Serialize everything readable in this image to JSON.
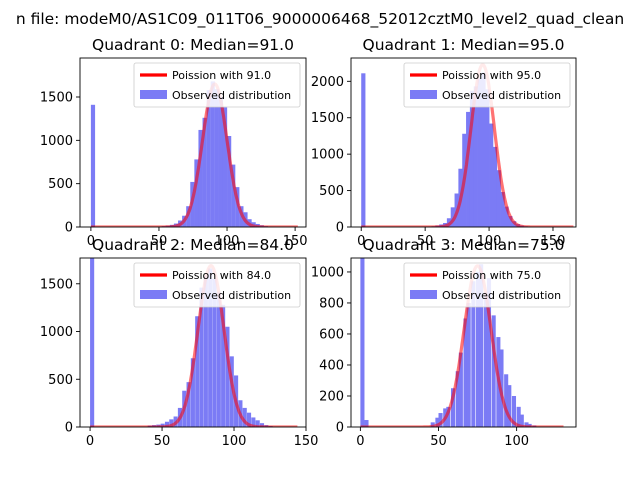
{
  "figure": {
    "suptitle": "n file: modeM0/AS1C09_011T06_9000006468_52012cztM0_level2_quad_clean"
  },
  "colors": {
    "hist": "#7b7bf5",
    "curve": "#ff0000",
    "curve_alpha": 0.55
  },
  "chart_data": [
    {
      "type": "bar",
      "title": "Quadrant 0: Median=91.0",
      "xlim": [
        -8,
        158
      ],
      "ylim": [
        0,
        1950
      ],
      "xticks": [
        0,
        50,
        100,
        150
      ],
      "yticks": [
        0,
        500,
        1000,
        1500
      ],
      "legend": {
        "position": "top-right",
        "entries": [
          "Poission with 91.0",
          "Observed distribution"
        ]
      },
      "hist": {
        "bin_width": 3.08,
        "x": [
          0,
          52,
          55,
          58,
          61,
          64,
          67,
          70,
          73,
          76,
          79,
          82,
          85,
          88,
          91,
          94,
          97,
          100,
          103,
          106,
          109,
          112,
          115,
          118,
          121,
          124,
          127,
          130,
          133
        ],
        "values": [
          1410,
          10,
          15,
          25,
          40,
          75,
          130,
          240,
          520,
          780,
          1120,
          1260,
          1580,
          1680,
          1590,
          1500,
          1380,
          1050,
          720,
          460,
          240,
          170,
          90,
          55,
          35,
          20,
          10,
          5,
          3
        ]
      },
      "curve": {
        "label": "Poission with 91.0",
        "mean": 91.0,
        "sigma": 9.0,
        "peak": 1650,
        "x_range": [
          0,
          152
        ]
      }
    },
    {
      "type": "bar",
      "title": "Quadrant 1: Median=95.0",
      "xlim": [
        -8,
        168
      ],
      "ylim": [
        0,
        2320
      ],
      "xticks": [
        0,
        50,
        100,
        150
      ],
      "yticks": [
        0,
        500,
        1000,
        1500,
        2000
      ],
      "legend": {
        "position": "top-right",
        "entries": [
          "Poission with 95.0",
          "Observed distribution"
        ]
      },
      "hist": {
        "bin_width": 3.29,
        "x": [
          0,
          55,
          58,
          61,
          64,
          67,
          70,
          73,
          76,
          79,
          82,
          85,
          88,
          91,
          94,
          97,
          100,
          103,
          106,
          109,
          112,
          115,
          118,
          121,
          124,
          127,
          130
        ],
        "values": [
          2110,
          10,
          20,
          35,
          55,
          120,
          270,
          460,
          800,
          1280,
          1580,
          1870,
          1930,
          2040,
          2120,
          1890,
          1420,
          1100,
          780,
          480,
          280,
          150,
          80,
          40,
          20,
          10,
          5
        ]
      },
      "curve": {
        "label": "Poission with 95.0",
        "mean": 95.0,
        "sigma": 9.2,
        "peak": 2230,
        "x_range": [
          0,
          166
        ]
      }
    },
    {
      "type": "bar",
      "title": "Quadrant 2: Median=84.0",
      "xlim": [
        -7,
        150
      ],
      "ylim": [
        0,
        1770
      ],
      "xticks": [
        0,
        50,
        100,
        150
      ],
      "yticks": [
        0,
        500,
        1000,
        1500
      ],
      "legend": {
        "position": "top-right",
        "entries": [
          "Poission with 84.0",
          "Observed distribution"
        ]
      },
      "hist": {
        "bin_width": 2.86,
        "x": [
          0,
          40,
          43,
          46,
          49,
          52,
          55,
          58,
          61,
          64,
          67,
          70,
          73,
          76,
          79,
          82,
          85,
          88,
          91,
          94,
          97,
          100,
          103,
          106,
          109,
          112,
          115,
          118,
          121,
          124
        ],
        "values": [
          1770,
          15,
          20,
          25,
          35,
          55,
          80,
          110,
          200,
          380,
          470,
          720,
          1160,
          1460,
          1580,
          1660,
          1550,
          1410,
          1280,
          1050,
          740,
          540,
          280,
          200,
          150,
          100,
          70,
          40,
          20,
          10
        ]
      },
      "curve": {
        "label": "Poission with 84.0",
        "mean": 84.0,
        "sigma": 9.0,
        "peak": 1690,
        "x_range": [
          0,
          144
        ]
      }
    },
    {
      "type": "bar",
      "title": "Quadrant 3: Median=75.0",
      "xlim": [
        -6,
        138
      ],
      "ylim": [
        0,
        1090
      ],
      "xticks": [
        0,
        50,
        100
      ],
      "yticks": [
        0,
        200,
        400,
        600,
        800,
        1000
      ],
      "legend": {
        "position": "top-right",
        "entries": [
          "Poission with 75.0",
          "Observed distribution"
        ]
      },
      "hist": {
        "bin_width": 2.62,
        "x": [
          0,
          2.6,
          45,
          48,
          50,
          53,
          55,
          58,
          61,
          63,
          66,
          68,
          71,
          74,
          76,
          79,
          81,
          84,
          87,
          89,
          92,
          94,
          97,
          100,
          102,
          105,
          107,
          110
        ],
        "values": [
          1090,
          45,
          30,
          60,
          90,
          120,
          130,
          250,
          360,
          480,
          700,
          800,
          940,
          1000,
          1050,
          870,
          960,
          720,
          580,
          500,
          340,
          270,
          200,
          130,
          80,
          30,
          20,
          10
        ]
      },
      "curve": {
        "label": "Poission with 75.0",
        "mean": 75.0,
        "sigma": 8.6,
        "peak": 1040,
        "x_range": [
          0,
          130
        ]
      }
    }
  ]
}
